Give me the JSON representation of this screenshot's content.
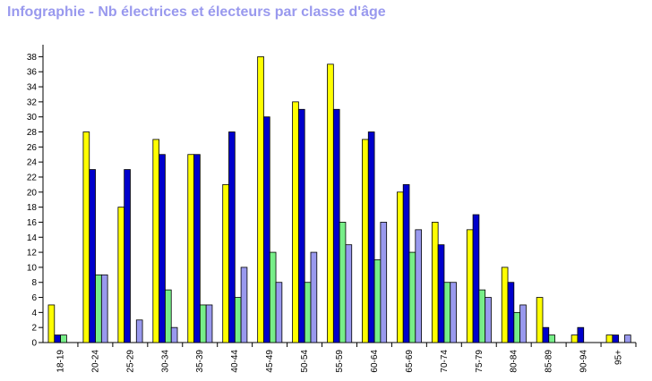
{
  "chart_data": {
    "type": "bar",
    "title": "Infographie - Nb électrices et électeurs par classe d'âge",
    "xlabel": "",
    "ylabel": "",
    "ylim": [
      0,
      39
    ],
    "yticks": [
      0,
      2,
      4,
      6,
      8,
      10,
      12,
      14,
      16,
      18,
      20,
      22,
      24,
      26,
      28,
      30,
      32,
      34,
      36,
      38
    ],
    "grid": false,
    "legend": "none",
    "categories": [
      "18-19",
      "20-24",
      "25-29",
      "30-34",
      "35-39",
      "40-44",
      "45-49",
      "50-54",
      "55-59",
      "60-64",
      "65-69",
      "70-74",
      "75-79",
      "80-84",
      "85-89",
      "90-94",
      "95+"
    ],
    "series": [
      {
        "color": "#ffff00",
        "values": [
          5,
          28,
          18,
          27,
          25,
          21,
          38,
          32,
          37,
          27,
          20,
          16,
          15,
          10,
          6,
          1,
          1
        ]
      },
      {
        "color": "#0000cc",
        "values": [
          1,
          23,
          23,
          25,
          25,
          28,
          30,
          31,
          31,
          28,
          21,
          13,
          17,
          8,
          2,
          2,
          1
        ]
      },
      {
        "color": "#77ee88",
        "values": [
          1,
          9,
          0,
          7,
          5,
          6,
          12,
          8,
          16,
          11,
          12,
          8,
          7,
          4,
          1,
          0,
          0
        ]
      },
      {
        "color": "#9999ee",
        "values": [
          0,
          9,
          3,
          2,
          5,
          10,
          8,
          12,
          13,
          16,
          15,
          8,
          6,
          5,
          0,
          0,
          1
        ]
      }
    ]
  }
}
